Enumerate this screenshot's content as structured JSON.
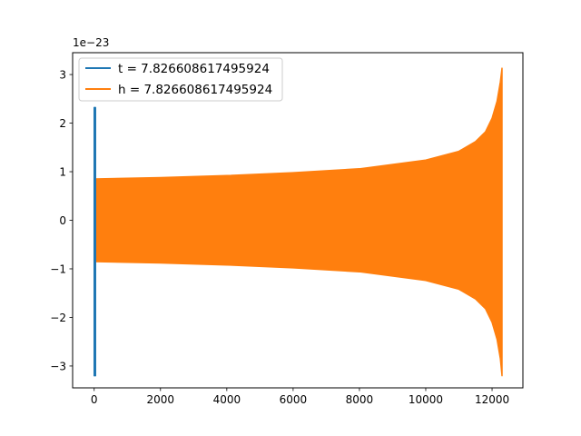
{
  "chart_data": {
    "type": "line",
    "title": "",
    "xlabel": "",
    "ylabel": "",
    "y_scale_label": "1e−23",
    "xlim": [
      -650,
      12930
    ],
    "ylim": [
      -3.45,
      3.45
    ],
    "x_ticks": [
      0,
      2000,
      4000,
      6000,
      8000,
      10000,
      12000
    ],
    "x_tick_labels": [
      "0",
      "2000",
      "4000",
      "6000",
      "8000",
      "10000",
      "12000"
    ],
    "y_ticks": [
      -3,
      -2,
      -1,
      0,
      1,
      2,
      3
    ],
    "y_tick_labels": [
      "−3",
      "−2",
      "−1",
      "0",
      "1",
      "2",
      "3"
    ],
    "grid": false,
    "legend_position": "upper-left",
    "series": [
      {
        "name": "t = 7.826608617495924",
        "color": "#1f77b4",
        "description": "oscillation confined near x = 0",
        "x_range": [
          0,
          8
        ],
        "y_range": [
          -3.2,
          2.32
        ]
      },
      {
        "name": "h = 7.826608617495924",
        "color": "#ff7f0e",
        "description": "dense oscillation with growing amplitude (chirp) ending at x ≈ 12300",
        "x_range": [
          0,
          12300
        ],
        "envelope": {
          "x": [
            0,
            2000,
            4000,
            6000,
            8000,
            10000,
            11000,
            11500,
            11800,
            12000,
            12150,
            12250,
            12300
          ],
          "y_upper": [
            0.85,
            0.88,
            0.92,
            0.98,
            1.06,
            1.24,
            1.42,
            1.62,
            1.82,
            2.1,
            2.45,
            2.85,
            3.13
          ],
          "y_lower": [
            -0.85,
            -0.88,
            -0.92,
            -0.98,
            -1.06,
            -1.24,
            -1.42,
            -1.62,
            -1.82,
            -2.1,
            -2.45,
            -2.85,
            -3.2
          ]
        }
      }
    ]
  }
}
